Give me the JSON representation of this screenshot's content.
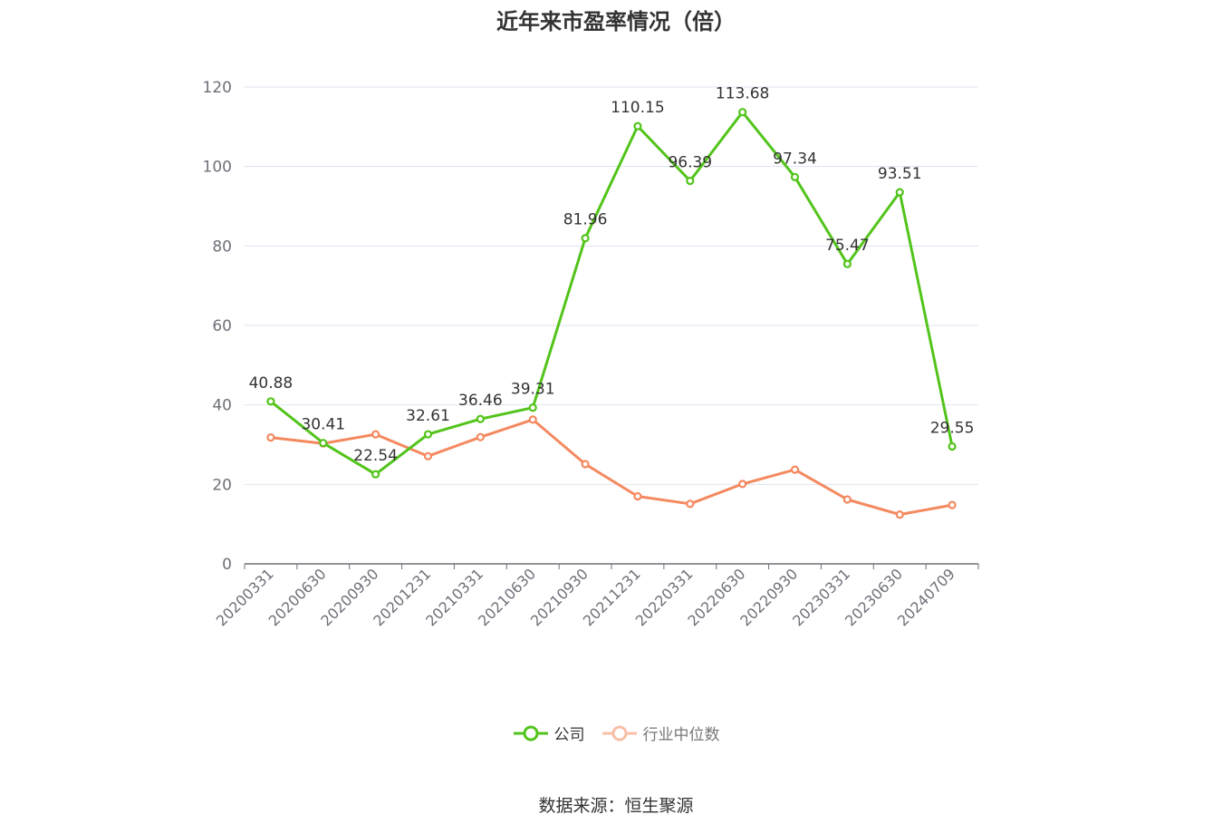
{
  "chart_data": {
    "type": "line",
    "title": "近年来市盈率情况（倍）",
    "categories": [
      "20200331",
      "20200630",
      "20200930",
      "20201231",
      "20210331",
      "20210630",
      "20210930",
      "20211231",
      "20220331",
      "20220630",
      "20220930",
      "20230331",
      "20230630",
      "20240709"
    ],
    "ylim": [
      0,
      120
    ],
    "yticks": [
      0,
      20,
      40,
      60,
      80,
      100,
      120
    ],
    "grid": true,
    "legend_position": "bottom",
    "series": [
      {
        "name": "公司",
        "color": "#52c41a",
        "show_labels": true,
        "values": [
          40.88,
          30.41,
          22.54,
          32.61,
          36.46,
          39.31,
          81.96,
          110.15,
          96.39,
          113.68,
          97.34,
          75.47,
          93.51,
          29.55
        ]
      },
      {
        "name": "行业中位数",
        "color": "#f4895f",
        "show_labels": false,
        "values": [
          31.8,
          30.3,
          32.6,
          27.1,
          31.9,
          36.3,
          25.1,
          17.0,
          15.1,
          20.1,
          23.7,
          16.2,
          12.4,
          14.8
        ]
      }
    ]
  },
  "source": "数据来源：恒生聚源"
}
